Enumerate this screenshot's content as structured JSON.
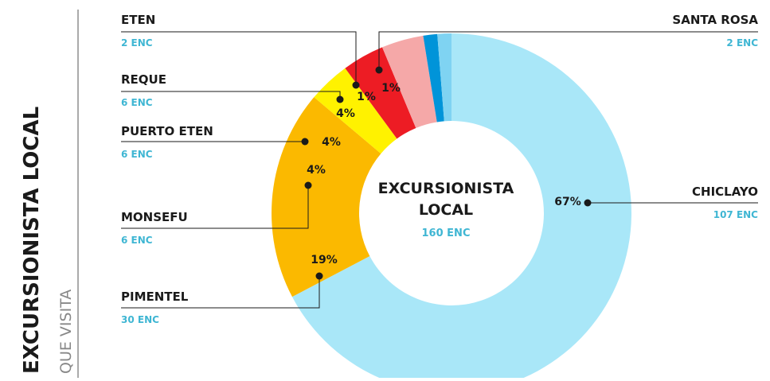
{
  "chart_data": {
    "type": "donut",
    "title": "EXCURSIONISTA LOCAL",
    "subtitle": "QUE VISITA",
    "center_text": [
      "EXCURSIONISTA",
      "LOCAL"
    ],
    "total": 160,
    "total_label": "160 ENC",
    "categories": [
      "CHICLAYO",
      "PIMENTEL",
      "MONSEFU",
      "PUERTO ETEN",
      "REQUE",
      "ETEN",
      "SANTA ROSA"
    ],
    "values": [
      107,
      30,
      6,
      6,
      6,
      2,
      2
    ],
    "value_labels": [
      "107 ENC",
      "30 ENC",
      "6 ENC",
      "6 ENC",
      "6 ENC",
      "2 ENC",
      "2 ENC"
    ],
    "percentages": [
      67,
      19,
      4,
      4,
      4,
      1,
      1
    ],
    "percentage_labels": [
      "67%",
      "19%",
      "4%",
      "4%",
      "4%",
      "1%",
      "1%"
    ],
    "colors": [
      "#a9e7f8",
      "#fbb900",
      "#fff200",
      "#ed1c24",
      "#f5a8a8",
      "#0094d9",
      "#7fd3f2"
    ]
  }
}
